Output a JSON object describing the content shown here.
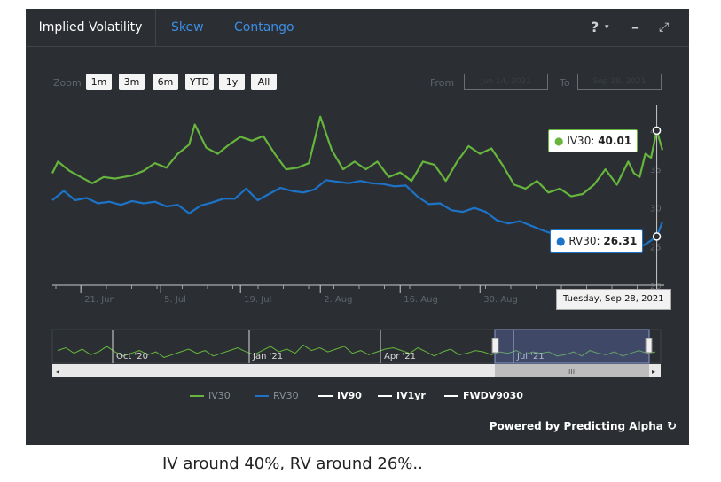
{
  "tabs": [
    {
      "label": "Implied Volatility",
      "active": true
    },
    {
      "label": "Skew",
      "active": false
    },
    {
      "label": "Contango",
      "active": false
    }
  ],
  "toolbar": {
    "help_label": "?",
    "minimize_label": "–"
  },
  "zoom": {
    "label": "Zoom",
    "buttons": [
      "1m",
      "3m",
      "6m",
      "YTD",
      "1y",
      "All"
    ]
  },
  "range": {
    "from_label": "From",
    "from_value": "Jun 14, 2021",
    "to_label": "To",
    "to_value": "Sep 28, 2021"
  },
  "colors": {
    "iv30": "#66b53c",
    "rv30": "#1c73c8",
    "iv90": "#ffffff",
    "iv1yr": "#ffffff",
    "fwdv9030": "#ffffff",
    "background": "#2b2f33"
  },
  "chart_data": {
    "type": "line",
    "x_ticks": [
      "21. Jun",
      "5. Jul",
      "19. Jul",
      "2. Aug",
      "16. Aug",
      "30. Aug"
    ],
    "y_ticks": [
      "40",
      "35",
      "30",
      "25",
      "20"
    ],
    "ylim": [
      20,
      42
    ],
    "xlim": [
      "2021-06-14",
      "2021-09-29"
    ],
    "series": [
      {
        "name": "IV30",
        "points": [
          [
            "2021-06-14",
            34.5
          ],
          [
            "2021-06-15",
            36
          ],
          [
            "2021-06-17",
            34.8
          ],
          [
            "2021-06-19",
            34
          ],
          [
            "2021-06-21",
            33.2
          ],
          [
            "2021-06-23",
            34
          ],
          [
            "2021-06-25",
            33.8
          ],
          [
            "2021-06-28",
            34.2
          ],
          [
            "2021-06-30",
            34.8
          ],
          [
            "2021-07-02",
            35.8
          ],
          [
            "2021-07-04",
            35.2
          ],
          [
            "2021-07-06",
            37
          ],
          [
            "2021-07-08",
            38.2
          ],
          [
            "2021-07-09",
            40.8
          ],
          [
            "2021-07-11",
            37.8
          ],
          [
            "2021-07-13",
            37
          ],
          [
            "2021-07-15",
            38.2
          ],
          [
            "2021-07-17",
            39.2
          ],
          [
            "2021-07-19",
            38.7
          ],
          [
            "2021-07-21",
            39.3
          ],
          [
            "2021-07-23",
            37
          ],
          [
            "2021-07-25",
            35
          ],
          [
            "2021-07-27",
            35.2
          ],
          [
            "2021-07-29",
            35.8
          ],
          [
            "2021-07-31",
            41.8
          ],
          [
            "2021-08-02",
            37.5
          ],
          [
            "2021-08-04",
            35
          ],
          [
            "2021-08-06",
            36
          ],
          [
            "2021-08-08",
            35
          ],
          [
            "2021-08-10",
            36
          ],
          [
            "2021-08-12",
            34
          ],
          [
            "2021-08-14",
            34.6
          ],
          [
            "2021-08-16",
            33.5
          ],
          [
            "2021-08-18",
            36
          ],
          [
            "2021-08-20",
            35.6
          ],
          [
            "2021-08-22",
            33.5
          ],
          [
            "2021-08-24",
            36
          ],
          [
            "2021-08-26",
            38
          ],
          [
            "2021-08-28",
            37
          ],
          [
            "2021-08-30",
            37.7
          ],
          [
            "2021-09-01",
            35.5
          ],
          [
            "2021-09-03",
            33
          ],
          [
            "2021-09-05",
            32.5
          ],
          [
            "2021-09-07",
            33.5
          ],
          [
            "2021-09-09",
            32
          ],
          [
            "2021-09-11",
            32.5
          ],
          [
            "2021-09-13",
            31.5
          ],
          [
            "2021-09-15",
            31.8
          ],
          [
            "2021-09-17",
            33
          ],
          [
            "2021-09-19",
            35
          ],
          [
            "2021-09-21",
            33
          ],
          [
            "2021-09-23",
            36
          ],
          [
            "2021-09-24",
            34.5
          ],
          [
            "2021-09-25",
            34
          ],
          [
            "2021-09-26",
            37
          ],
          [
            "2021-09-27",
            36.5
          ],
          [
            "2021-09-28",
            40.01
          ],
          [
            "2021-09-29",
            37.5
          ]
        ]
      },
      {
        "name": "RV30",
        "points": [
          [
            "2021-06-14",
            31
          ],
          [
            "2021-06-16",
            32.2
          ],
          [
            "2021-06-18",
            31
          ],
          [
            "2021-06-20",
            31.3
          ],
          [
            "2021-06-22",
            30.6
          ],
          [
            "2021-06-24",
            30.8
          ],
          [
            "2021-06-26",
            30.4
          ],
          [
            "2021-06-28",
            30.9
          ],
          [
            "2021-06-30",
            30.6
          ],
          [
            "2021-07-02",
            30.8
          ],
          [
            "2021-07-04",
            30.2
          ],
          [
            "2021-07-06",
            30.4
          ],
          [
            "2021-07-08",
            29.3
          ],
          [
            "2021-07-10",
            30.3
          ],
          [
            "2021-07-12",
            30.7
          ],
          [
            "2021-07-14",
            31.2
          ],
          [
            "2021-07-16",
            31.2
          ],
          [
            "2021-07-18",
            32.5
          ],
          [
            "2021-07-20",
            31
          ],
          [
            "2021-07-22",
            31.8
          ],
          [
            "2021-07-24",
            32.6
          ],
          [
            "2021-07-26",
            32.2
          ],
          [
            "2021-07-28",
            32
          ],
          [
            "2021-07-30",
            32.4
          ],
          [
            "2021-08-01",
            33.6
          ],
          [
            "2021-08-03",
            33.4
          ],
          [
            "2021-08-05",
            33.2
          ],
          [
            "2021-08-07",
            33.5
          ],
          [
            "2021-08-09",
            33.2
          ],
          [
            "2021-08-11",
            33.1
          ],
          [
            "2021-08-13",
            32.8
          ],
          [
            "2021-08-15",
            32.9
          ],
          [
            "2021-08-17",
            31.5
          ],
          [
            "2021-08-19",
            30.5
          ],
          [
            "2021-08-21",
            30.6
          ],
          [
            "2021-08-23",
            29.7
          ],
          [
            "2021-08-25",
            29.5
          ],
          [
            "2021-08-27",
            30
          ],
          [
            "2021-08-29",
            29.5
          ],
          [
            "2021-08-31",
            28.4
          ],
          [
            "2021-09-02",
            28
          ],
          [
            "2021-09-04",
            28.3
          ],
          [
            "2021-09-06",
            27.7
          ],
          [
            "2021-09-08",
            27.1
          ],
          [
            "2021-09-10",
            26.6
          ],
          [
            "2021-09-12",
            26.3
          ],
          [
            "2021-09-14",
            25.5
          ],
          [
            "2021-09-16",
            25.1
          ],
          [
            "2021-09-18",
            24.9
          ],
          [
            "2021-09-20",
            24.7
          ],
          [
            "2021-09-22",
            24.4
          ],
          [
            "2021-09-24",
            24.6
          ],
          [
            "2021-09-26",
            25.3
          ],
          [
            "2021-09-27",
            25.8
          ],
          [
            "2021-09-28",
            26.31
          ],
          [
            "2021-09-29",
            28.2
          ]
        ]
      }
    ],
    "tooltip_date": "Tuesday, Sep 28, 2021",
    "tooltips": [
      {
        "label": "IV30:",
        "value": "40.01"
      },
      {
        "label": "RV30:",
        "value": "26.31"
      }
    ],
    "navigator": {
      "x_ticks": [
        "Oct '20",
        "Jan '21",
        "Apr '21",
        "Jul '21"
      ],
      "selected": "Jun 14, 2021 – Sep 28, 2021"
    },
    "legend": [
      "IV30",
      "RV30",
      "IV90",
      "IV1yr",
      "FWDV9030"
    ]
  },
  "footer": {
    "powered_by": "Powered by Predicting Alpha"
  },
  "caption": "IV around 40%, RV around 26%.."
}
